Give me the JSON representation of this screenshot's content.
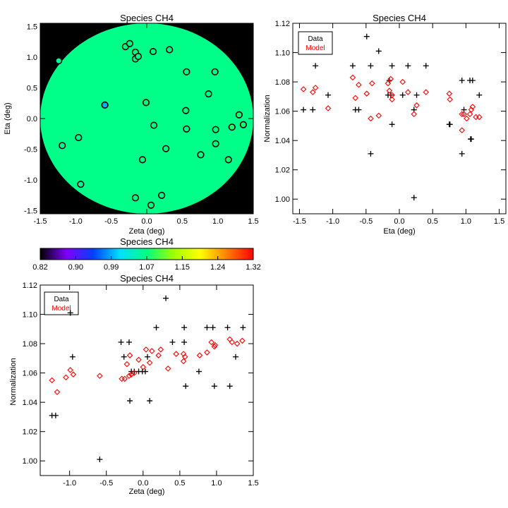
{
  "chart_data": [
    {
      "type": "scatter",
      "title": "Species CH4",
      "xlabel": "Zeta (deg)",
      "ylabel": "Eta (deg)",
      "xlim": [
        -1.5,
        1.5
      ],
      "ylim": [
        -1.55,
        1.55
      ],
      "xticks": [
        -1.5,
        -1.0,
        -0.5,
        0.0,
        0.5,
        1.0,
        1.5
      ],
      "yticks": [
        -1.5,
        -1.0,
        -0.5,
        0.0,
        0.5,
        1.0,
        1.5
      ],
      "background_fill": "#00ff88",
      "points": [
        {
          "x": -1.24,
          "y": 0.94,
          "v": 1.06
        },
        {
          "x": -0.3,
          "y": 1.17,
          "v": 1.07
        },
        {
          "x": -0.24,
          "y": 1.22,
          "v": 1.07
        },
        {
          "x": -0.16,
          "y": 1.08,
          "v": 1.07
        },
        {
          "x": -0.16,
          "y": 0.97,
          "v": 1.07
        },
        {
          "x": -0.12,
          "y": 1.01,
          "v": 1.07
        },
        {
          "x": 0.09,
          "y": 1.09,
          "v": 1.07
        },
        {
          "x": 0.32,
          "y": 1.12,
          "v": 1.07
        },
        {
          "x": 0.56,
          "y": 0.76,
          "v": 1.07
        },
        {
          "x": 0.96,
          "y": 0.76,
          "v": 1.07
        },
        {
          "x": 0.87,
          "y": 0.4,
          "v": 1.07
        },
        {
          "x": -0.59,
          "y": 0.22,
          "v": 0.99
        },
        {
          "x": -0.01,
          "y": 0.26,
          "v": 1.07
        },
        {
          "x": 0.55,
          "y": 0.13,
          "v": 1.07
        },
        {
          "x": 1.3,
          "y": 0.06,
          "v": 1.08
        },
        {
          "x": 1.36,
          "y": -0.1,
          "v": 1.08
        },
        {
          "x": 1.2,
          "y": -0.14,
          "v": 1.08
        },
        {
          "x": 0.97,
          "y": -0.18,
          "v": 1.07
        },
        {
          "x": 0.56,
          "y": -0.17,
          "v": 1.07
        },
        {
          "x": 0.1,
          "y": -0.11,
          "v": 1.07
        },
        {
          "x": -0.96,
          "y": -0.31,
          "v": 1.06
        },
        {
          "x": -1.19,
          "y": -0.44,
          "v": 1.06
        },
        {
          "x": 0.97,
          "y": -0.41,
          "v": 1.07
        },
        {
          "x": 0.27,
          "y": -0.49,
          "v": 1.07
        },
        {
          "x": 0.76,
          "y": -0.59,
          "v": 1.07
        },
        {
          "x": -0.06,
          "y": -0.67,
          "v": 1.07
        },
        {
          "x": 1.15,
          "y": -0.67,
          "v": 1.08
        },
        {
          "x": -0.93,
          "y": -1.07,
          "v": 1.06
        },
        {
          "x": -0.16,
          "y": -1.29,
          "v": 1.07
        },
        {
          "x": 0.21,
          "y": -1.25,
          "v": 1.07
        },
        {
          "x": 0.06,
          "y": -1.41,
          "v": 1.07
        }
      ]
    },
    {
      "type": "scatter",
      "title": "Species CH4",
      "xlabel": "Eta (deg)",
      "ylabel": "Normalization",
      "xlim": [
        -1.6,
        1.6
      ],
      "ylim": [
        0.99,
        1.12
      ],
      "xticks": [
        -1.5,
        -1.0,
        -0.5,
        0.0,
        0.5,
        1.0,
        1.5
      ],
      "yticks": [
        1.0,
        1.02,
        1.04,
        1.06,
        1.08,
        1.1,
        1.12
      ],
      "legend_position": "top-left",
      "series": [
        {
          "name": "Data",
          "marker": "plus",
          "color": "#000000",
          "points": [
            [
              -1.44,
              1.061
            ],
            [
              -1.3,
              1.061
            ],
            [
              -1.26,
              1.091
            ],
            [
              -1.07,
              1.071
            ],
            [
              -0.7,
              1.091
            ],
            [
              -0.66,
              1.061
            ],
            [
              -0.61,
              1.061
            ],
            [
              -0.49,
              1.111
            ],
            [
              -0.43,
              1.091
            ],
            [
              -0.43,
              1.031
            ],
            [
              -0.31,
              1.101
            ],
            [
              -0.17,
              1.071
            ],
            [
              -0.15,
              1.081
            ],
            [
              -0.13,
              1.071
            ],
            [
              -0.11,
              1.051
            ],
            [
              -0.11,
              1.091
            ],
            [
              0.05,
              1.071
            ],
            [
              0.13,
              1.091
            ],
            [
              0.22,
              1.061
            ],
            [
              0.22,
              1.001
            ],
            [
              0.26,
              1.071
            ],
            [
              0.4,
              1.091
            ],
            [
              0.75,
              1.051
            ],
            [
              0.76,
              1.051
            ],
            [
              0.94,
              1.081
            ],
            [
              0.94,
              1.031
            ],
            [
              0.97,
              1.061
            ],
            [
              1.06,
              1.081
            ],
            [
              1.07,
              1.041
            ],
            [
              1.08,
              1.041
            ],
            [
              1.1,
              1.081
            ],
            [
              1.2,
              1.071
            ]
          ]
        },
        {
          "name": "Model",
          "marker": "diamond",
          "color": "#ff0000",
          "points": [
            [
              -1.44,
              1.075
            ],
            [
              -1.3,
              1.073
            ],
            [
              -1.26,
              1.076
            ],
            [
              -1.07,
              1.062
            ],
            [
              -0.7,
              1.083
            ],
            [
              -0.66,
              1.069
            ],
            [
              -0.61,
              1.078
            ],
            [
              -0.49,
              1.072
            ],
            [
              -0.43,
              1.055
            ],
            [
              -0.41,
              1.079
            ],
            [
              -0.31,
              1.057
            ],
            [
              -0.17,
              1.079
            ],
            [
              -0.15,
              1.074
            ],
            [
              -0.13,
              1.082
            ],
            [
              -0.11,
              1.068
            ],
            [
              -0.11,
              1.071
            ],
            [
              0.05,
              1.08
            ],
            [
              0.13,
              1.073
            ],
            [
              0.22,
              1.058
            ],
            [
              0.26,
              1.064
            ],
            [
              0.4,
              1.073
            ],
            [
              0.75,
              1.072
            ],
            [
              0.76,
              1.068
            ],
            [
              0.94,
              1.047
            ],
            [
              0.94,
              1.058
            ],
            [
              0.97,
              1.058
            ],
            [
              1.01,
              1.055
            ],
            [
              1.06,
              1.058
            ],
            [
              1.08,
              1.061
            ],
            [
              1.1,
              1.063
            ],
            [
              1.15,
              1.056
            ],
            [
              1.2,
              1.056
            ]
          ]
        }
      ]
    },
    {
      "type": "colorbar",
      "title": "Species CH4",
      "tick_labels": [
        "0.82",
        "0.90",
        "0.99",
        "1.07",
        "1.15",
        "1.24",
        "1.32"
      ],
      "range": [
        0.82,
        1.32
      ],
      "colors": [
        "#000000",
        "#7f00ff",
        "#0040ff",
        "#00e0ff",
        "#00ff80",
        "#a0ff00",
        "#ffff00",
        "#ff8000",
        "#ff0000"
      ]
    },
    {
      "type": "scatter",
      "title": "Species CH4",
      "xlabel": "Zeta (deg)",
      "ylabel": "Normalization",
      "xlim": [
        -1.4,
        1.5
      ],
      "ylim": [
        0.99,
        1.12
      ],
      "xticks": [
        -1.0,
        -0.5,
        0.0,
        0.5,
        1.0,
        1.5
      ],
      "yticks": [
        1.0,
        1.02,
        1.04,
        1.06,
        1.08,
        1.1,
        1.12
      ],
      "legend_position": "top-left",
      "series": [
        {
          "name": "Data",
          "marker": "plus",
          "color": "#000000",
          "points": [
            [
              -1.24,
              1.031
            ],
            [
              -1.19,
              1.031
            ],
            [
              -0.99,
              1.101
            ],
            [
              -0.96,
              1.071
            ],
            [
              -0.59,
              1.001
            ],
            [
              -0.3,
              1.081
            ],
            [
              -0.26,
              1.071
            ],
            [
              -0.19,
              1.081
            ],
            [
              -0.18,
              1.041
            ],
            [
              -0.16,
              1.061
            ],
            [
              -0.12,
              1.061
            ],
            [
              -0.06,
              1.061
            ],
            [
              -0.01,
              1.061
            ],
            [
              0.03,
              1.061
            ],
            [
              0.06,
              1.071
            ],
            [
              0.09,
              1.041
            ],
            [
              0.18,
              1.091
            ],
            [
              0.31,
              1.111
            ],
            [
              0.4,
              1.081
            ],
            [
              0.56,
              1.091
            ],
            [
              0.56,
              1.081
            ],
            [
              0.58,
              1.051
            ],
            [
              0.76,
              1.061
            ],
            [
              0.87,
              1.091
            ],
            [
              0.95,
              1.091
            ],
            [
              0.97,
              1.051
            ],
            [
              1.15,
              1.091
            ],
            [
              1.18,
              1.051
            ],
            [
              1.26,
              1.071
            ],
            [
              1.36,
              1.091
            ]
          ]
        },
        {
          "name": "Model",
          "marker": "diamond",
          "color": "#ff0000",
          "points": [
            [
              -1.24,
              1.055
            ],
            [
              -1.17,
              1.047
            ],
            [
              -1.05,
              1.057
            ],
            [
              -0.99,
              1.062
            ],
            [
              -0.95,
              1.059
            ],
            [
              -0.59,
              1.058
            ],
            [
              -0.29,
              1.056
            ],
            [
              -0.25,
              1.056
            ],
            [
              -0.22,
              1.066
            ],
            [
              -0.19,
              1.058
            ],
            [
              -0.18,
              1.072
            ],
            [
              -0.16,
              1.059
            ],
            [
              -0.12,
              1.06
            ],
            [
              -0.06,
              1.069
            ],
            [
              0.0,
              1.064
            ],
            [
              0.04,
              1.076
            ],
            [
              0.09,
              1.067
            ],
            [
              0.12,
              1.075
            ],
            [
              0.21,
              1.072
            ],
            [
              0.24,
              1.076
            ],
            [
              0.34,
              1.063
            ],
            [
              0.45,
              1.073
            ],
            [
              0.55,
              1.068
            ],
            [
              0.55,
              1.073
            ],
            [
              0.57,
              1.071
            ],
            [
              0.77,
              1.072
            ],
            [
              0.87,
              1.074
            ],
            [
              0.93,
              1.081
            ],
            [
              0.97,
              1.078
            ],
            [
              0.98,
              1.079
            ],
            [
              1.18,
              1.083
            ],
            [
              1.21,
              1.081
            ],
            [
              1.28,
              1.08
            ],
            [
              1.35,
              1.082
            ]
          ]
        }
      ]
    }
  ]
}
